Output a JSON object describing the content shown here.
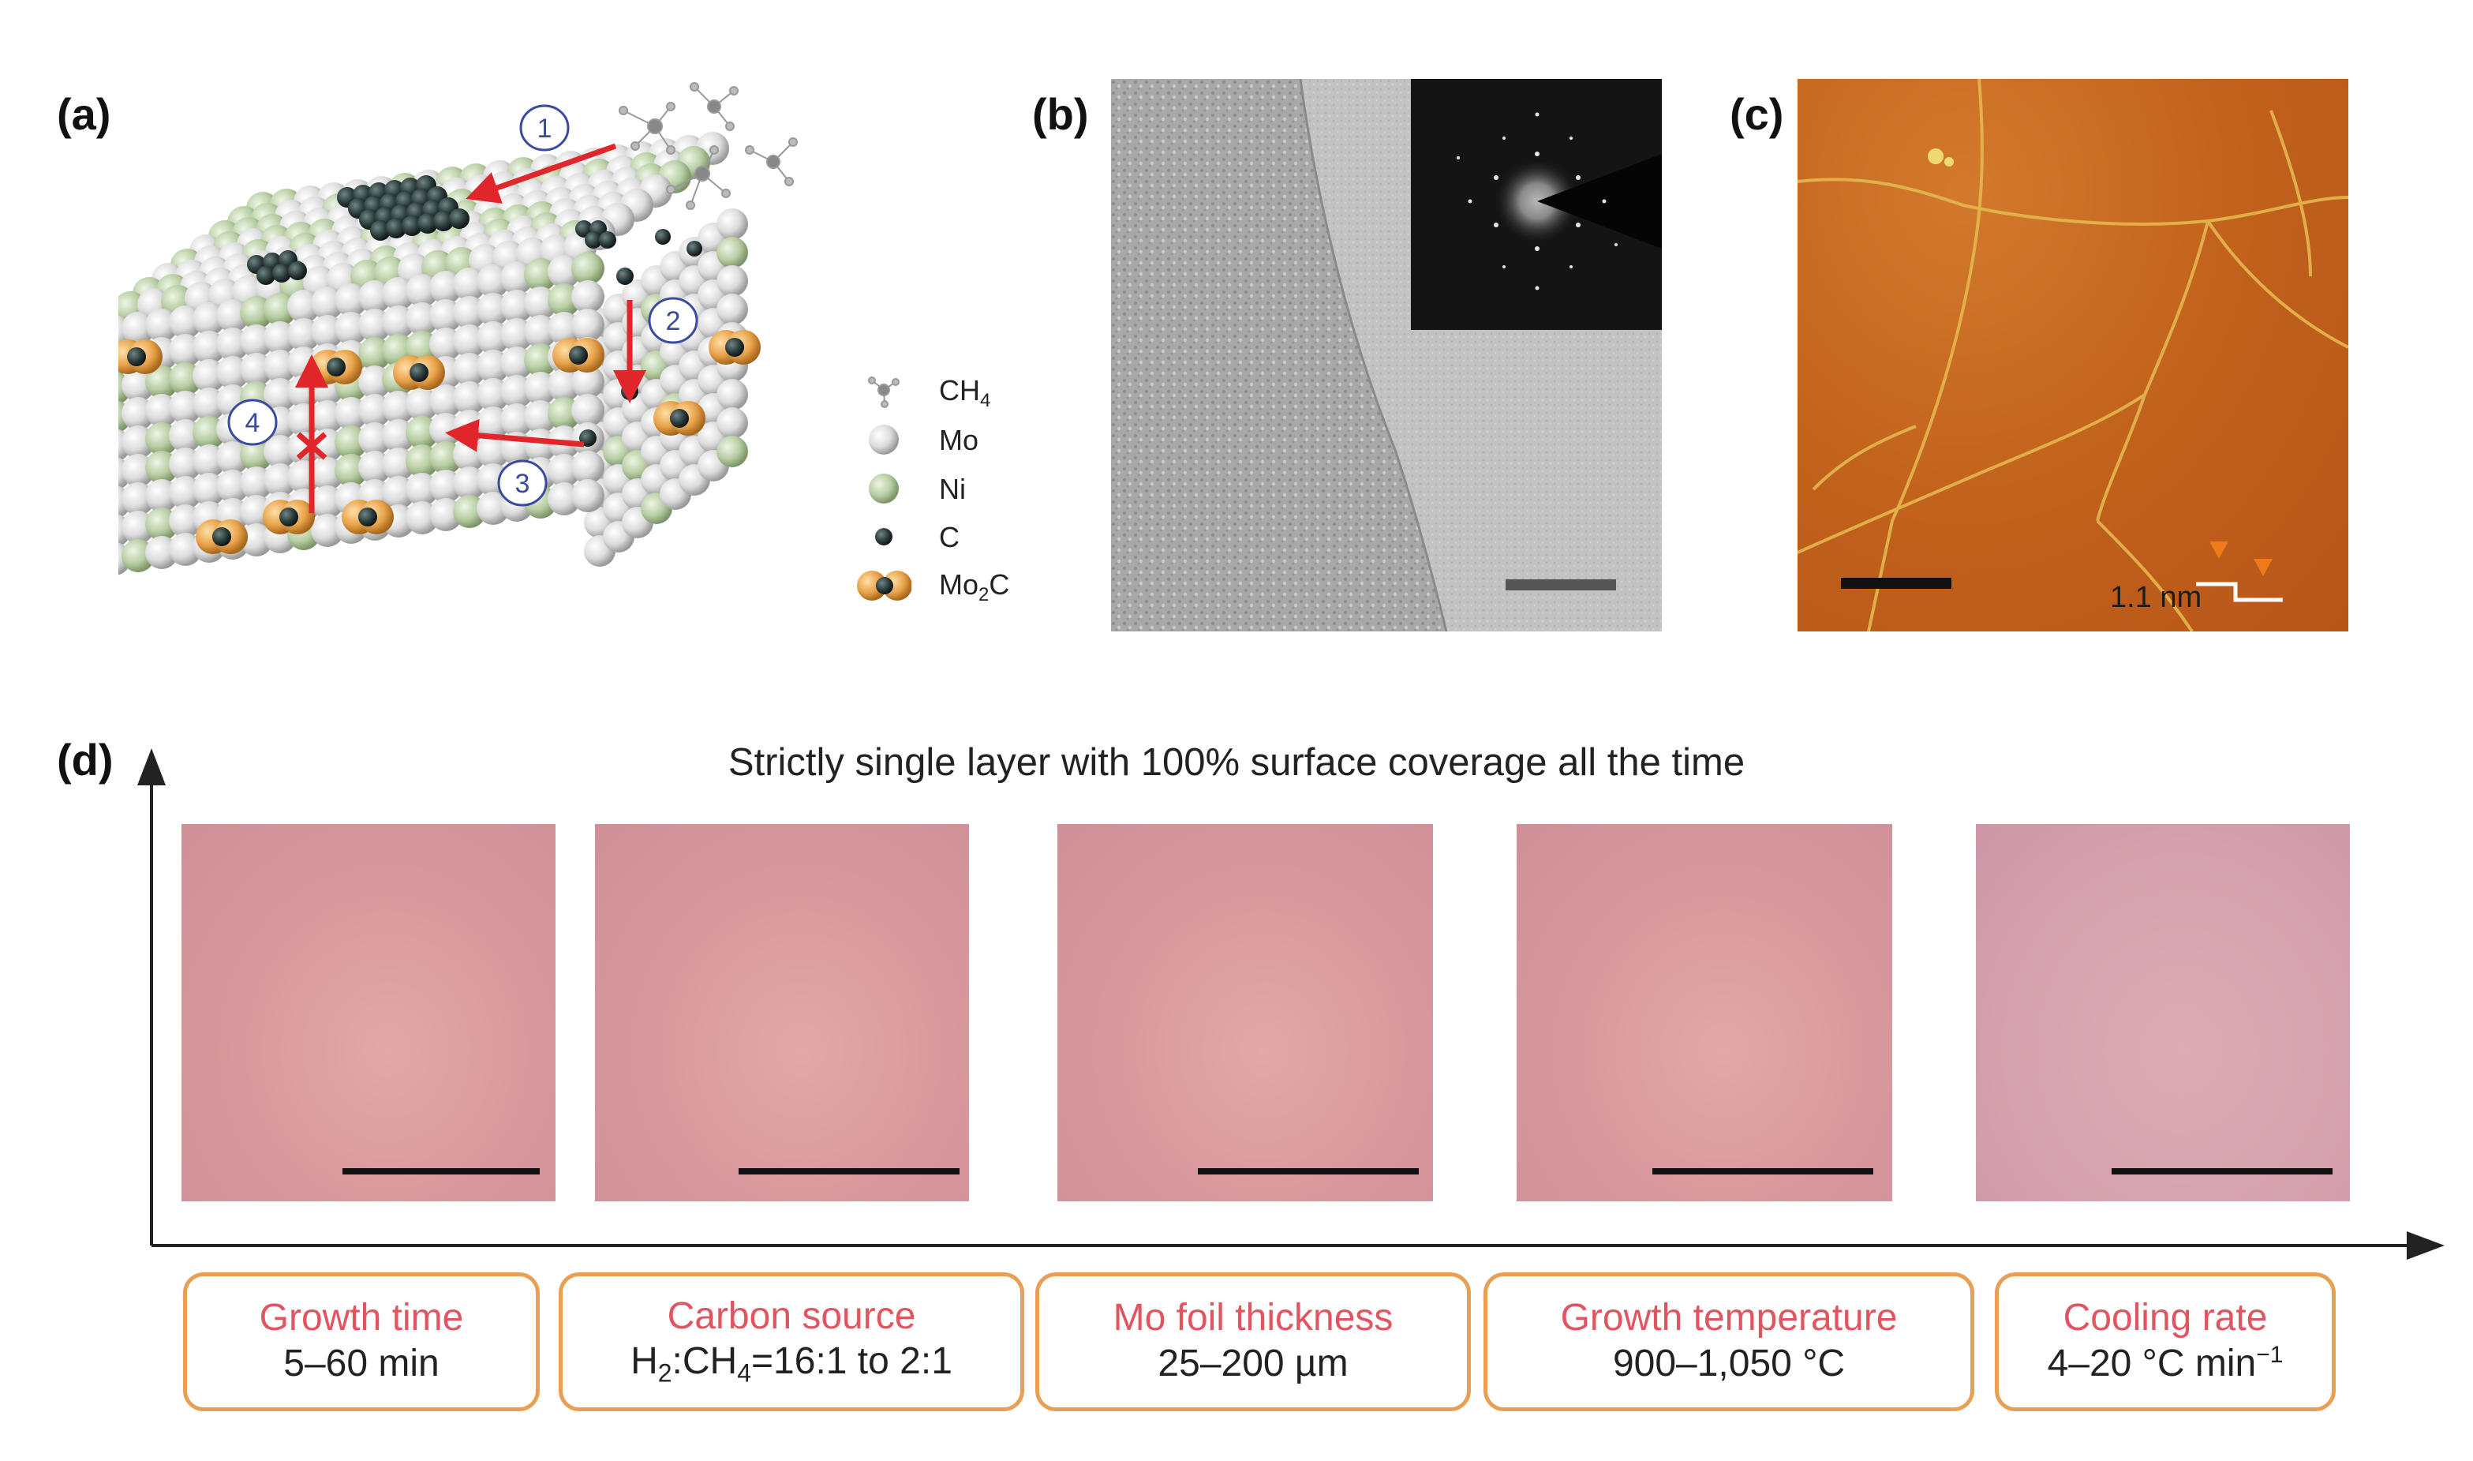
{
  "panels": {
    "a": {
      "label": "(a)",
      "steps": [
        "1",
        "2",
        "3",
        "4"
      ],
      "legend": [
        {
          "icon": "methane-icon",
          "label": "CH4"
        },
        {
          "icon": "mo-atom-icon",
          "label": "Mo"
        },
        {
          "icon": "ni-atom-icon",
          "label": "Ni"
        },
        {
          "icon": "c-atom-icon",
          "label": "C"
        },
        {
          "icon": "mo2c-icon",
          "label": "Mo2C"
        }
      ]
    },
    "b": {
      "label": "(b)"
    },
    "c": {
      "label": "(c)",
      "height_annotation": "1.1 nm"
    },
    "d": {
      "label": "(d)",
      "caption": "Strictly single layer with 100% surface coverage all the time",
      "parameters": [
        {
          "title": "Growth time",
          "value": "5–60 min"
        },
        {
          "title": "Carbon source",
          "value": "H2:CH4=16:1 to 2:1"
        },
        {
          "title": "Mo foil thickness",
          "value": "25–200 µm"
        },
        {
          "title": "Growth temperature",
          "value": "900–1,050 °C"
        },
        {
          "title": "Cooling rate",
          "value": "4–20 °C min−1"
        }
      ]
    }
  },
  "colors": {
    "arrow_red": "#e0262b",
    "mo_white": "#e8e8e8",
    "ni_green": "#b9cfa5",
    "carbon_dark": "#2b3a3a",
    "mo2c_orange": "#e8a24a",
    "box_orange": "#e8a055",
    "box_title_red": "#e05560",
    "afm_orange": "#c3621d"
  }
}
